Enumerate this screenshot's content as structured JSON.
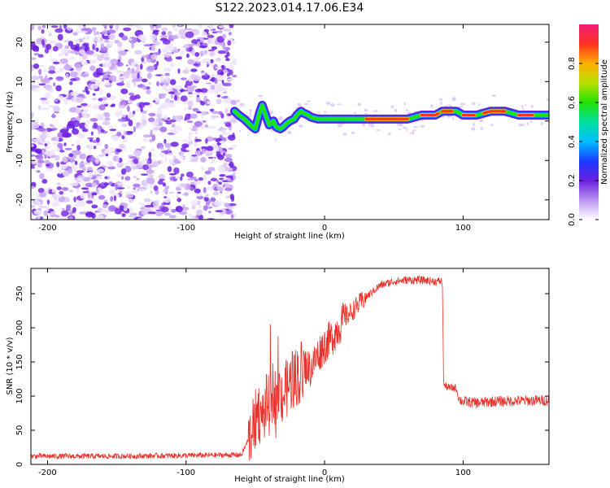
{
  "title": "S122.2023.014.17.06.E34",
  "chart_data": [
    {
      "type": "heatmap",
      "xlabel": "Height of straight line (km)",
      "ylabel": "Frequency (Hz)",
      "xlim": [
        -212,
        162
      ],
      "ylim": [
        -25,
        24.5
      ],
      "xticks": [
        -200,
        -100,
        0,
        100
      ],
      "yticks": [
        -20,
        -10,
        0,
        10,
        20
      ],
      "noise_region": [
        -212,
        -65
      ],
      "ridge": {
        "x": [
          -65,
          -62,
          -58,
          -55,
          -52,
          -50,
          -47,
          -45,
          -42,
          -40,
          -37,
          -35,
          -32,
          -30,
          -27,
          -25,
          -22,
          -20,
          -17,
          -15,
          -12,
          -10,
          -5,
          0,
          10,
          20,
          40,
          60,
          70,
          80,
          85,
          90,
          95,
          100,
          110,
          120,
          130,
          140,
          150,
          162
        ],
        "y": [
          2.5,
          1.5,
          0.5,
          -0.5,
          -1.5,
          -2,
          2,
          4,
          1,
          -1,
          0,
          -1.5,
          -2,
          -1.5,
          -0.5,
          0,
          0.5,
          1.5,
          2.5,
          2,
          1.5,
          1,
          0.5,
          0.5,
          0.5,
          0.5,
          0.5,
          0.5,
          1.5,
          1.5,
          2.5,
          2.5,
          2.5,
          1.5,
          1.5,
          2.5,
          2.5,
          1.5,
          1.5,
          1.5
        ]
      },
      "colorbar": {
        "label": "Normalized spectral amplitude",
        "range": [
          0,
          1
        ],
        "ticks": [
          "0.0",
          "0.2",
          "0.4",
          "0.6",
          "0.8"
        ]
      }
    },
    {
      "type": "line",
      "xlabel": "Height of straight line (km)",
      "ylabel": "SNR (10 * v/v)",
      "xlim": [
        -212,
        162
      ],
      "ylim": [
        0,
        287
      ],
      "xticks": [
        -200,
        -100,
        0,
        100
      ],
      "yticks": [
        0,
        50,
        100,
        150,
        200,
        250
      ],
      "series": [
        {
          "color": "#e8312a",
          "x": [
            -212,
            -150,
            -100,
            -60,
            -52,
            -48,
            -45,
            -42,
            -40,
            -37,
            -35,
            -32,
            -30,
            -25,
            -20,
            -15,
            -10,
            -5,
            0,
            5,
            10,
            15,
            20,
            30,
            40,
            50,
            60,
            70,
            80,
            85,
            86,
            87,
            90,
            95,
            97,
            100,
            110,
            120,
            140,
            162
          ],
          "y": [
            12,
            12,
            13,
            14,
            50,
            80,
            65,
            90,
            85,
            110,
            95,
            105,
            100,
            120,
            130,
            145,
            140,
            160,
            175,
            185,
            200,
            215,
            225,
            245,
            262,
            268,
            270,
            270,
            268,
            268,
            115,
            115,
            112,
            112,
            95,
            92,
            90,
            92,
            93,
            94
          ]
        }
      ]
    }
  ]
}
